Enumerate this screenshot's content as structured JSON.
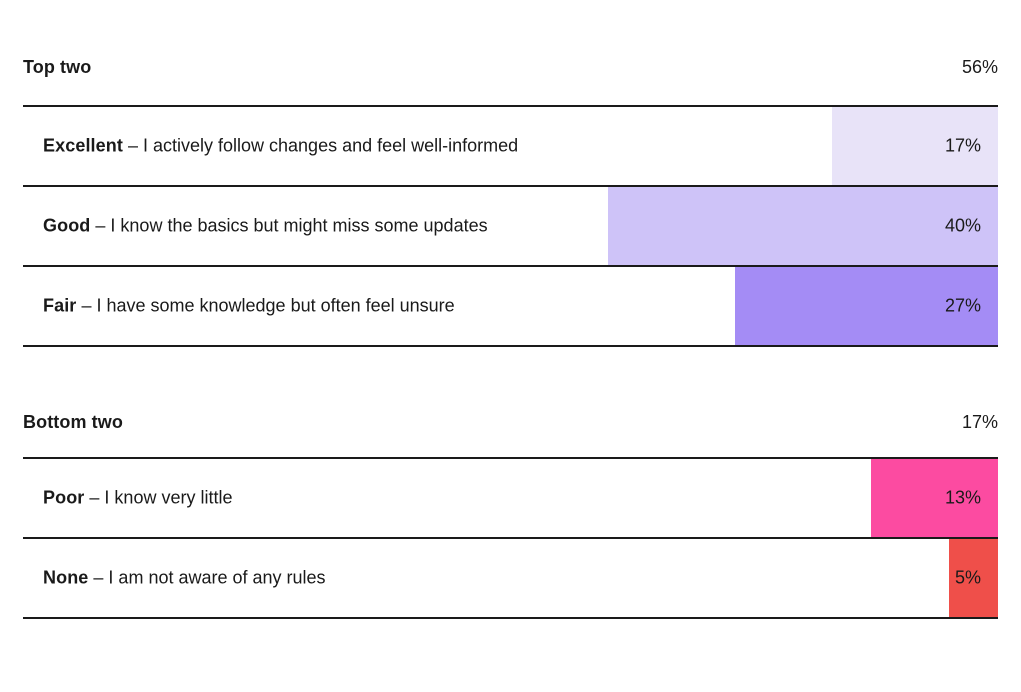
{
  "chart_data": {
    "type": "bar",
    "orientation": "horizontal",
    "unit": "%",
    "xlim": [
      0,
      100
    ],
    "grid": false,
    "legend": "none",
    "value_label_position": "inside-bar-right",
    "bar_anchor": "right",
    "colors": {
      "text": "#1a1a1a",
      "rule": "#1a1a1a",
      "background": "#ffffff"
    },
    "sections": [
      {
        "label": "Top two",
        "total_label": "56%",
        "rows": [
          {
            "term": "Excellent",
            "desc": "– I actively follow changes and feel well-informed",
            "value": 17,
            "value_label": "17%",
            "color": "#e8e3f8"
          },
          {
            "term": "Good",
            "desc": "– I know the basics but might miss some updates",
            "value": 40,
            "value_label": "40%",
            "color": "#cec3f8"
          },
          {
            "term": "Fair",
            "desc": "– I have some knowledge but often feel unsure",
            "value": 27,
            "value_label": "27%",
            "color": "#a48cf5"
          }
        ]
      },
      {
        "label": "Bottom two",
        "total_label": "17%",
        "rows": [
          {
            "term": "Poor",
            "desc": "– I know very little",
            "value": 13,
            "value_label": "13%",
            "color": "#fc4ba1"
          },
          {
            "term": "None",
            "desc": "– I am not aware of any rules",
            "value": 5,
            "value_label": "5%",
            "color": "#ef4f4a"
          }
        ]
      }
    ]
  }
}
